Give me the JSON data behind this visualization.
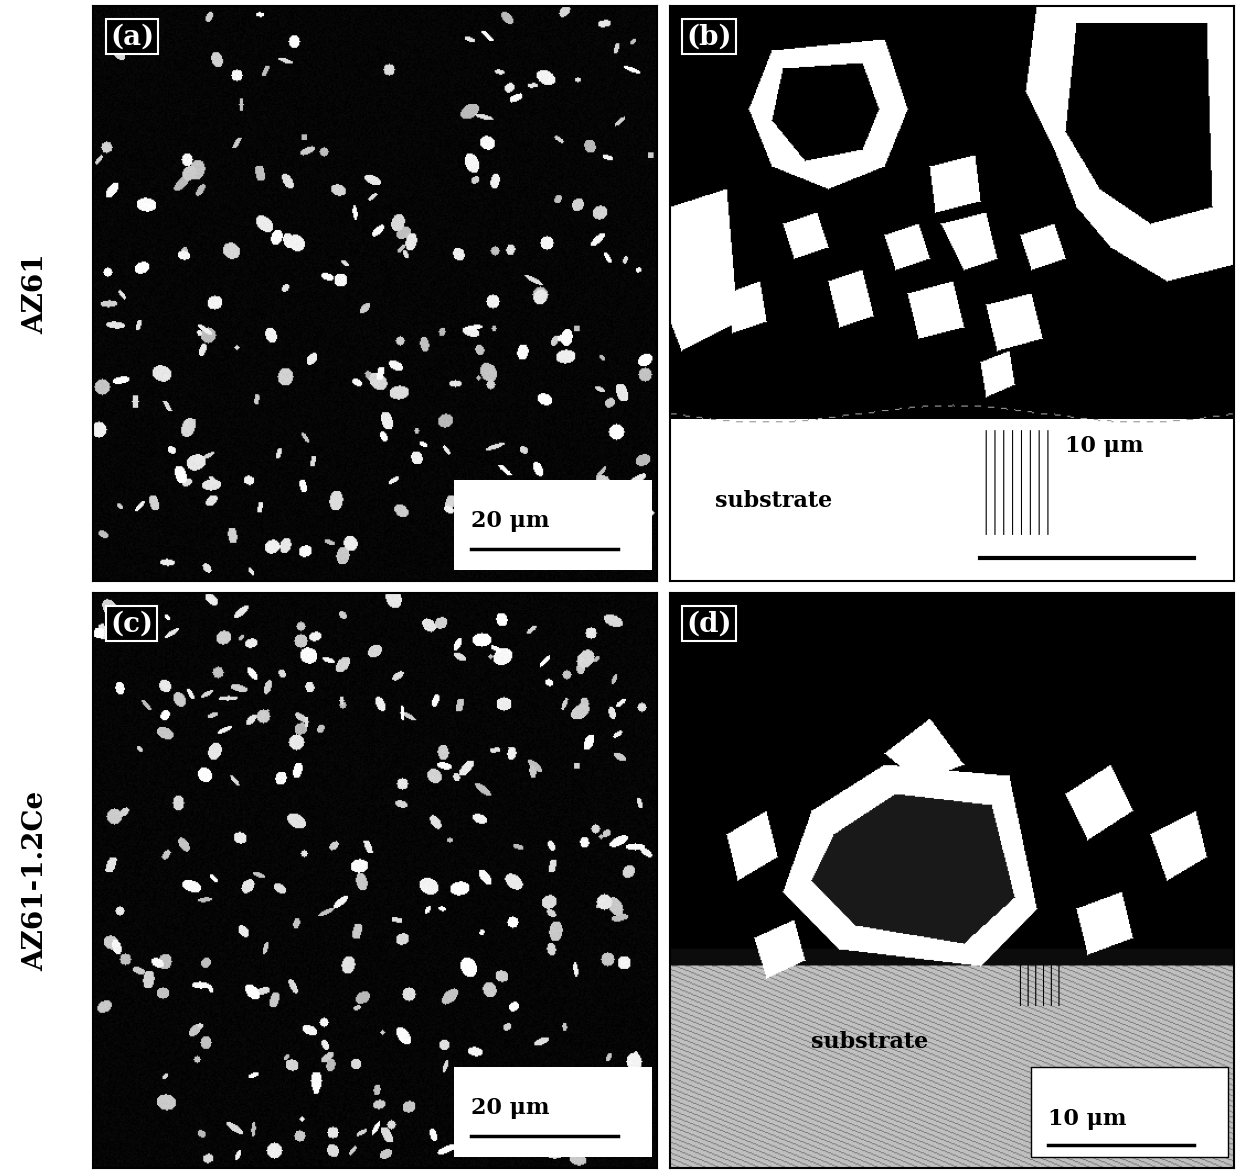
{
  "fig_width": 12.4,
  "fig_height": 11.74,
  "dpi": 100,
  "bg_color": "#ffffff",
  "panel_labels": [
    "(a)",
    "(b)",
    "(c)",
    "(d)"
  ],
  "row_labels": [
    "AZ61",
    "AZ61-1.2Ce"
  ],
  "scale_bar_labels_left": [
    "20 μm",
    "20 μm"
  ],
  "scale_bar_labels_right": [
    "10 μm",
    "10 μm"
  ],
  "substrate_label": "substrate",
  "label_font_size": 20,
  "row_label_font_size": 20,
  "scale_bar_font_size": 16,
  "substrate_font_size": 16,
  "seed_a": 42,
  "seed_c": 99,
  "num_particles_a": 200,
  "num_particles_c": 260
}
